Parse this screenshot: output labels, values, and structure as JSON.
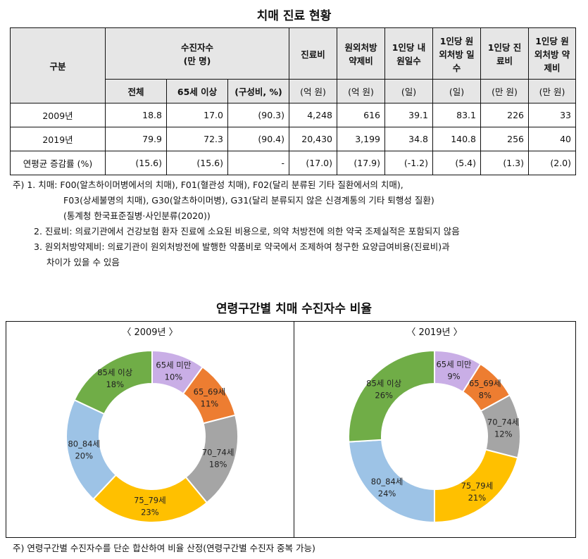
{
  "title": "치매 진료 현황",
  "table": {
    "header": {
      "category": "구분",
      "patients_group": "수진자수",
      "patients_unit": "(만 명)",
      "cost": "진료비",
      "rx_cost": "원외처방 약제비",
      "visit_days": "1인당 내원일수",
      "rx_days": "1인당 원외처방 일수",
      "per_cost": "1인당 진료비",
      "per_rx_cost": "1인당 원외처방 약제비",
      "sub_total": "전체",
      "sub_65": "65세 이상",
      "sub_ratio": "(구성비, %)",
      "unit_cost": "(억 원)",
      "unit_rx_cost": "(억 원)",
      "unit_visit_days": "(일)",
      "unit_rx_days": "(일)",
      "unit_per_cost": "(만 원)",
      "unit_per_rx_cost": "(만 원)"
    },
    "rows": [
      {
        "label": "2009년",
        "total": "18.8",
        "over65": "17.0",
        "ratio": "(90.3)",
        "cost": "4,248",
        "rx_cost": "616",
        "visit_days": "39.1",
        "rx_days": "83.1",
        "per_cost": "226",
        "per_rx_cost": "33"
      },
      {
        "label": "2019년",
        "total": "79.9",
        "over65": "72.3",
        "ratio": "(90.4)",
        "cost": "20,430",
        "rx_cost": "3,199",
        "visit_days": "34.8",
        "rx_days": "140.8",
        "per_cost": "256",
        "per_rx_cost": "40"
      },
      {
        "label": "연평균 증감률 (%)",
        "total": "(15.6)",
        "over65": "(15.6)",
        "ratio": "-",
        "cost": "(17.0)",
        "rx_cost": "(17.9)",
        "visit_days": "(-1.2)",
        "rx_days": "(5.4)",
        "per_cost": "(1.3)",
        "per_rx_cost": "(2.0)"
      }
    ]
  },
  "notes": [
    "주) 1. 치매: F00(알츠하이머병에서의 치매), F01(혈관성 치매), F02(달리 분류된 기타 질환에서의 치매),",
    "F03(상세불명의 치매), G30(알츠하이머병), G31(달리 분류되지 않은 신경계통의 기타 퇴행성 질환)",
    "(통계청 한국표준질병·사인분류(2020))",
    "2. 진료비: 의료기관에서 건강보험 환자 진료에 소요된 비용으로, 의약 처방전에 의한 약국 조제실적은 포함되지 않음",
    "3. 원외처방약제비: 의료기관이 원외처방전에 발행한 약품비로 약국에서 조제하여 청구한 요양급여비용(진료비)과",
    "차이가 있을 수 있음"
  ],
  "chart_title": "연령구간별 치매 수진자수 비율",
  "chart_data": [
    {
      "type": "pie",
      "title": "〈 2009년 〉",
      "categories": [
        "65세 미만",
        "65_69세",
        "70_74세",
        "75_79세",
        "80_84세",
        "85세 이상"
      ],
      "values": [
        10,
        11,
        18,
        23,
        20,
        18
      ],
      "labels": [
        "10%",
        "11%",
        "18%",
        "23%",
        "20%",
        "18%"
      ],
      "colors": [
        "#c9aee6",
        "#ed7d31",
        "#a5a5a5",
        "#ffc000",
        "#9dc3e6",
        "#70ad47"
      ],
      "donut": true
    },
    {
      "type": "pie",
      "title": "〈 2019년 〉",
      "categories": [
        "65세 미만",
        "65_69세",
        "70_74세",
        "75_79세",
        "80_84세",
        "85세 이상"
      ],
      "values": [
        9,
        8,
        12,
        21,
        24,
        26
      ],
      "labels": [
        "9%",
        "8%",
        "12%",
        "21%",
        "24%",
        "26%"
      ],
      "colors": [
        "#c9aee6",
        "#ed7d31",
        "#a5a5a5",
        "#ffc000",
        "#9dc3e6",
        "#70ad47"
      ],
      "donut": true
    }
  ],
  "chart_footnote": "주) 연령구간별 수진자수를 단순 합산하여 비율 산정(연령구간별 수진자 중복 가능)"
}
